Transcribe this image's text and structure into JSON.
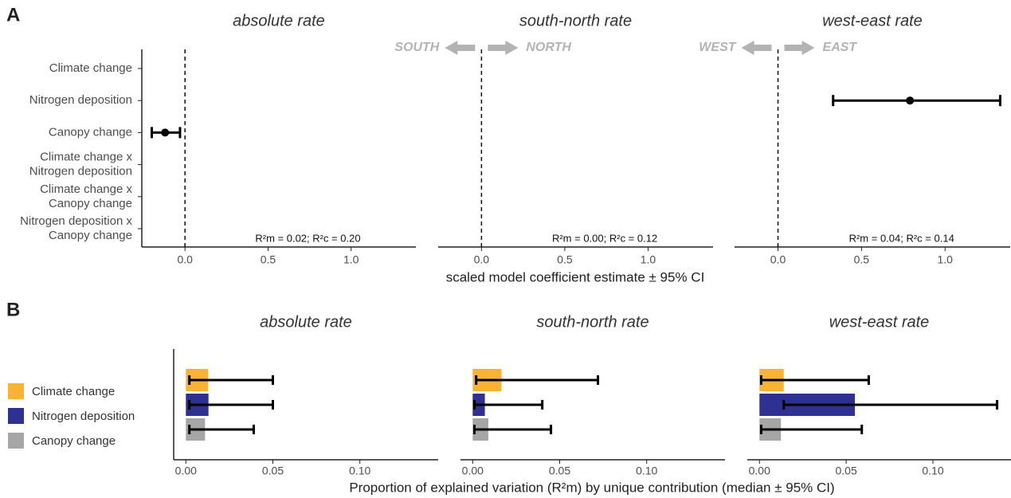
{
  "chart_data": [
    {
      "type": "dotplot",
      "panel": "A",
      "categories": [
        [
          "Climate change"
        ],
        [
          "Nitrogen deposition"
        ],
        [
          "Canopy change"
        ],
        [
          "Climate change x",
          "Nitrogen deposition"
        ],
        [
          "Climate change x",
          "Canopy change"
        ],
        [
          "Nitrogen deposition x",
          "Canopy change"
        ]
      ],
      "xlabel": "scaled model coefficient estimate ± 95% CI",
      "xlim": [
        -0.26,
        1.39
      ],
      "xticks": [
        {
          "value": 0,
          "label": "0.0"
        },
        {
          "value": 0.5,
          "label": "0.5"
        },
        {
          "value": 1,
          "label": "1.0"
        }
      ],
      "color": "#000000",
      "facets": [
        {
          "title": "absolute rate",
          "annotation": "R²m = 0.02; R²c = 0.20",
          "values": [
            null,
            null,
            -0.12,
            null,
            null,
            null
          ],
          "lower": [
            null,
            null,
            -0.2,
            null,
            null,
            null
          ],
          "upper": [
            null,
            null,
            -0.03,
            null,
            null,
            null
          ]
        },
        {
          "title": "south-north rate",
          "annotation": "R²m = 0.00; R²c = 0.12",
          "directions": [
            "SOUTH",
            "NORTH"
          ],
          "values": [
            null,
            null,
            null,
            null,
            null,
            null
          ],
          "lower": [
            null,
            null,
            null,
            null,
            null,
            null
          ],
          "upper": [
            null,
            null,
            null,
            null,
            null,
            null
          ]
        },
        {
          "title": "west-east rate",
          "annotation": "R²m = 0.04; R²c = 0.14",
          "directions": [
            "WEST",
            "EAST"
          ],
          "values": [
            null,
            0.79,
            null,
            null,
            null,
            null
          ],
          "lower": [
            null,
            0.33,
            null,
            null,
            null,
            null
          ],
          "upper": [
            null,
            1.33,
            null,
            null,
            null,
            null
          ]
        }
      ]
    },
    {
      "type": "bar",
      "panel": "B",
      "categories": [
        "Climate change",
        "Nitrogen deposition",
        "Canopy change"
      ],
      "colors": [
        "#f9b233",
        "#2e3192",
        "#a6a6a6"
      ],
      "legend": "left",
      "xlabel": "Proportion of explained variation (R²m) by unique contribution (median ± 95% CI)",
      "xlim": [
        -0.007,
        0.145
      ],
      "xticks": [
        {
          "value": 0,
          "label": "0.00"
        },
        0.05,
        {
          "value": 0.1,
          "label": "0.10"
        }
      ],
      "facets": [
        {
          "title": "absolute rate",
          "values": [
            0.0128,
            0.013,
            0.011
          ],
          "lower": [
            0.002,
            0.002,
            0.002
          ],
          "upper": [
            0.05,
            0.05,
            0.039
          ]
        },
        {
          "title": "south-north rate",
          "values": [
            0.0165,
            0.007,
            0.009
          ],
          "lower": [
            0.002,
            0.001,
            0.001
          ],
          "upper": [
            0.072,
            0.04,
            0.045
          ]
        },
        {
          "title": "west-east rate",
          "values": [
            0.014,
            0.055,
            0.0124
          ],
          "lower": [
            0.001,
            0.014,
            0.001
          ],
          "upper": [
            0.063,
            0.137,
            0.059
          ]
        }
      ]
    }
  ]
}
